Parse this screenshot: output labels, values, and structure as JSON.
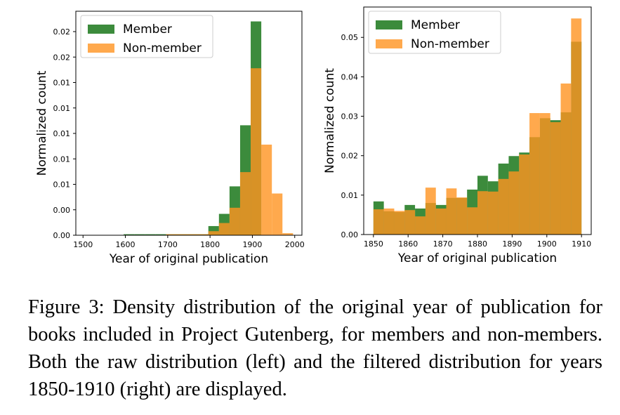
{
  "chart_data": [
    {
      "type": "histogram",
      "xlabel": "Year of original publication",
      "ylabel": "Normalized count",
      "bins": [
        1596,
        1621,
        1646,
        1671,
        1696,
        1721,
        1746,
        1771,
        1796,
        1821,
        1846,
        1871,
        1896,
        1921,
        1946,
        1971,
        1996
      ],
      "series": [
        {
          "name": "Member",
          "color": "#0b6e0b",
          "values": [
            0.0001,
            0.0001,
            0.0001,
            0.0001,
            0.0001,
            0.0001,
            0.0001,
            0.0001,
            0.0009,
            0.0021,
            0.0048,
            0.0108,
            0.021,
            0,
            0,
            0
          ]
        },
        {
          "name": "Non-member",
          "color": "#ff9320",
          "values": [
            0,
            0,
            0,
            0,
            0.0001,
            0.0001,
            0.0001,
            0.0001,
            0.0004,
            0.0012,
            0.0027,
            0.0062,
            0.0164,
            0.0089,
            0.0041,
            0.0002
          ]
        }
      ],
      "alpha": 0.8,
      "xlim": [
        1483,
        2017
      ],
      "xticks": [
        1500,
        1600,
        1700,
        1800,
        1900,
        2000
      ],
      "ylim": [
        0,
        0.022
      ],
      "yticks": [
        {
          "value": 0,
          "label": "0.00"
        },
        {
          "value": 0.0025,
          "label": "0.00"
        },
        {
          "value": 0.005,
          "label": "0.01"
        },
        {
          "value": 0.0075,
          "label": "0.01"
        },
        0.01,
        {
          "value": 0.0125,
          "label": "0.01"
        },
        {
          "value": 0.015,
          "label": "0.01"
        },
        {
          "value": 0.0175,
          "label": "0.02"
        },
        0.02
      ],
      "legend": "upper left"
    },
    {
      "type": "histogram",
      "xlabel": "Year of original publication",
      "ylabel": "Normalized count",
      "bins": [
        1850,
        1853,
        1856,
        1859,
        1862,
        1865,
        1868,
        1871,
        1874,
        1877,
        1880,
        1883,
        1886,
        1889,
        1892,
        1895,
        1898,
        1901,
        1904,
        1907,
        1910
      ],
      "series": [
        {
          "name": "Member",
          "color": "#0b6e0b",
          "values": [
            0.0084,
            0.0059,
            0.0057,
            0.0075,
            0.0066,
            0.008,
            0.0075,
            0.0093,
            0.0093,
            0.0114,
            0.0149,
            0.0135,
            0.018,
            0.0199,
            0.0208,
            0.0247,
            0.0295,
            0.029,
            0.031,
            0.0489
          ]
        },
        {
          "name": "Non-member",
          "color": "#ff9320",
          "values": [
            0.0064,
            0.0066,
            0.006,
            0.0062,
            0.0046,
            0.0119,
            0.0066,
            0.0117,
            0.0094,
            0.0069,
            0.011,
            0.0109,
            0.0141,
            0.016,
            0.0203,
            0.0308,
            0.0308,
            0.0285,
            0.0383,
            0.0548
          ]
        }
      ],
      "alpha": 0.8,
      "xlim": [
        1847.2,
        1912.8
      ],
      "xticks": [
        1850,
        1860,
        1870,
        1880,
        1890,
        1900,
        1910
      ],
      "ylim": [
        0,
        0.0577
      ],
      "yticks": [
        {
          "value": 0,
          "label": "0.00"
        },
        0.01,
        0.02,
        0.03,
        0.04,
        0.05
      ],
      "legend": "upper left"
    }
  ],
  "caption": "Figure 3: Density distribution of the original year of publication for books included in Project Gutenberg, for members and non-members. Both the raw distribution (left) and the filtered distribution for years 1850-1910 (right) are displayed."
}
